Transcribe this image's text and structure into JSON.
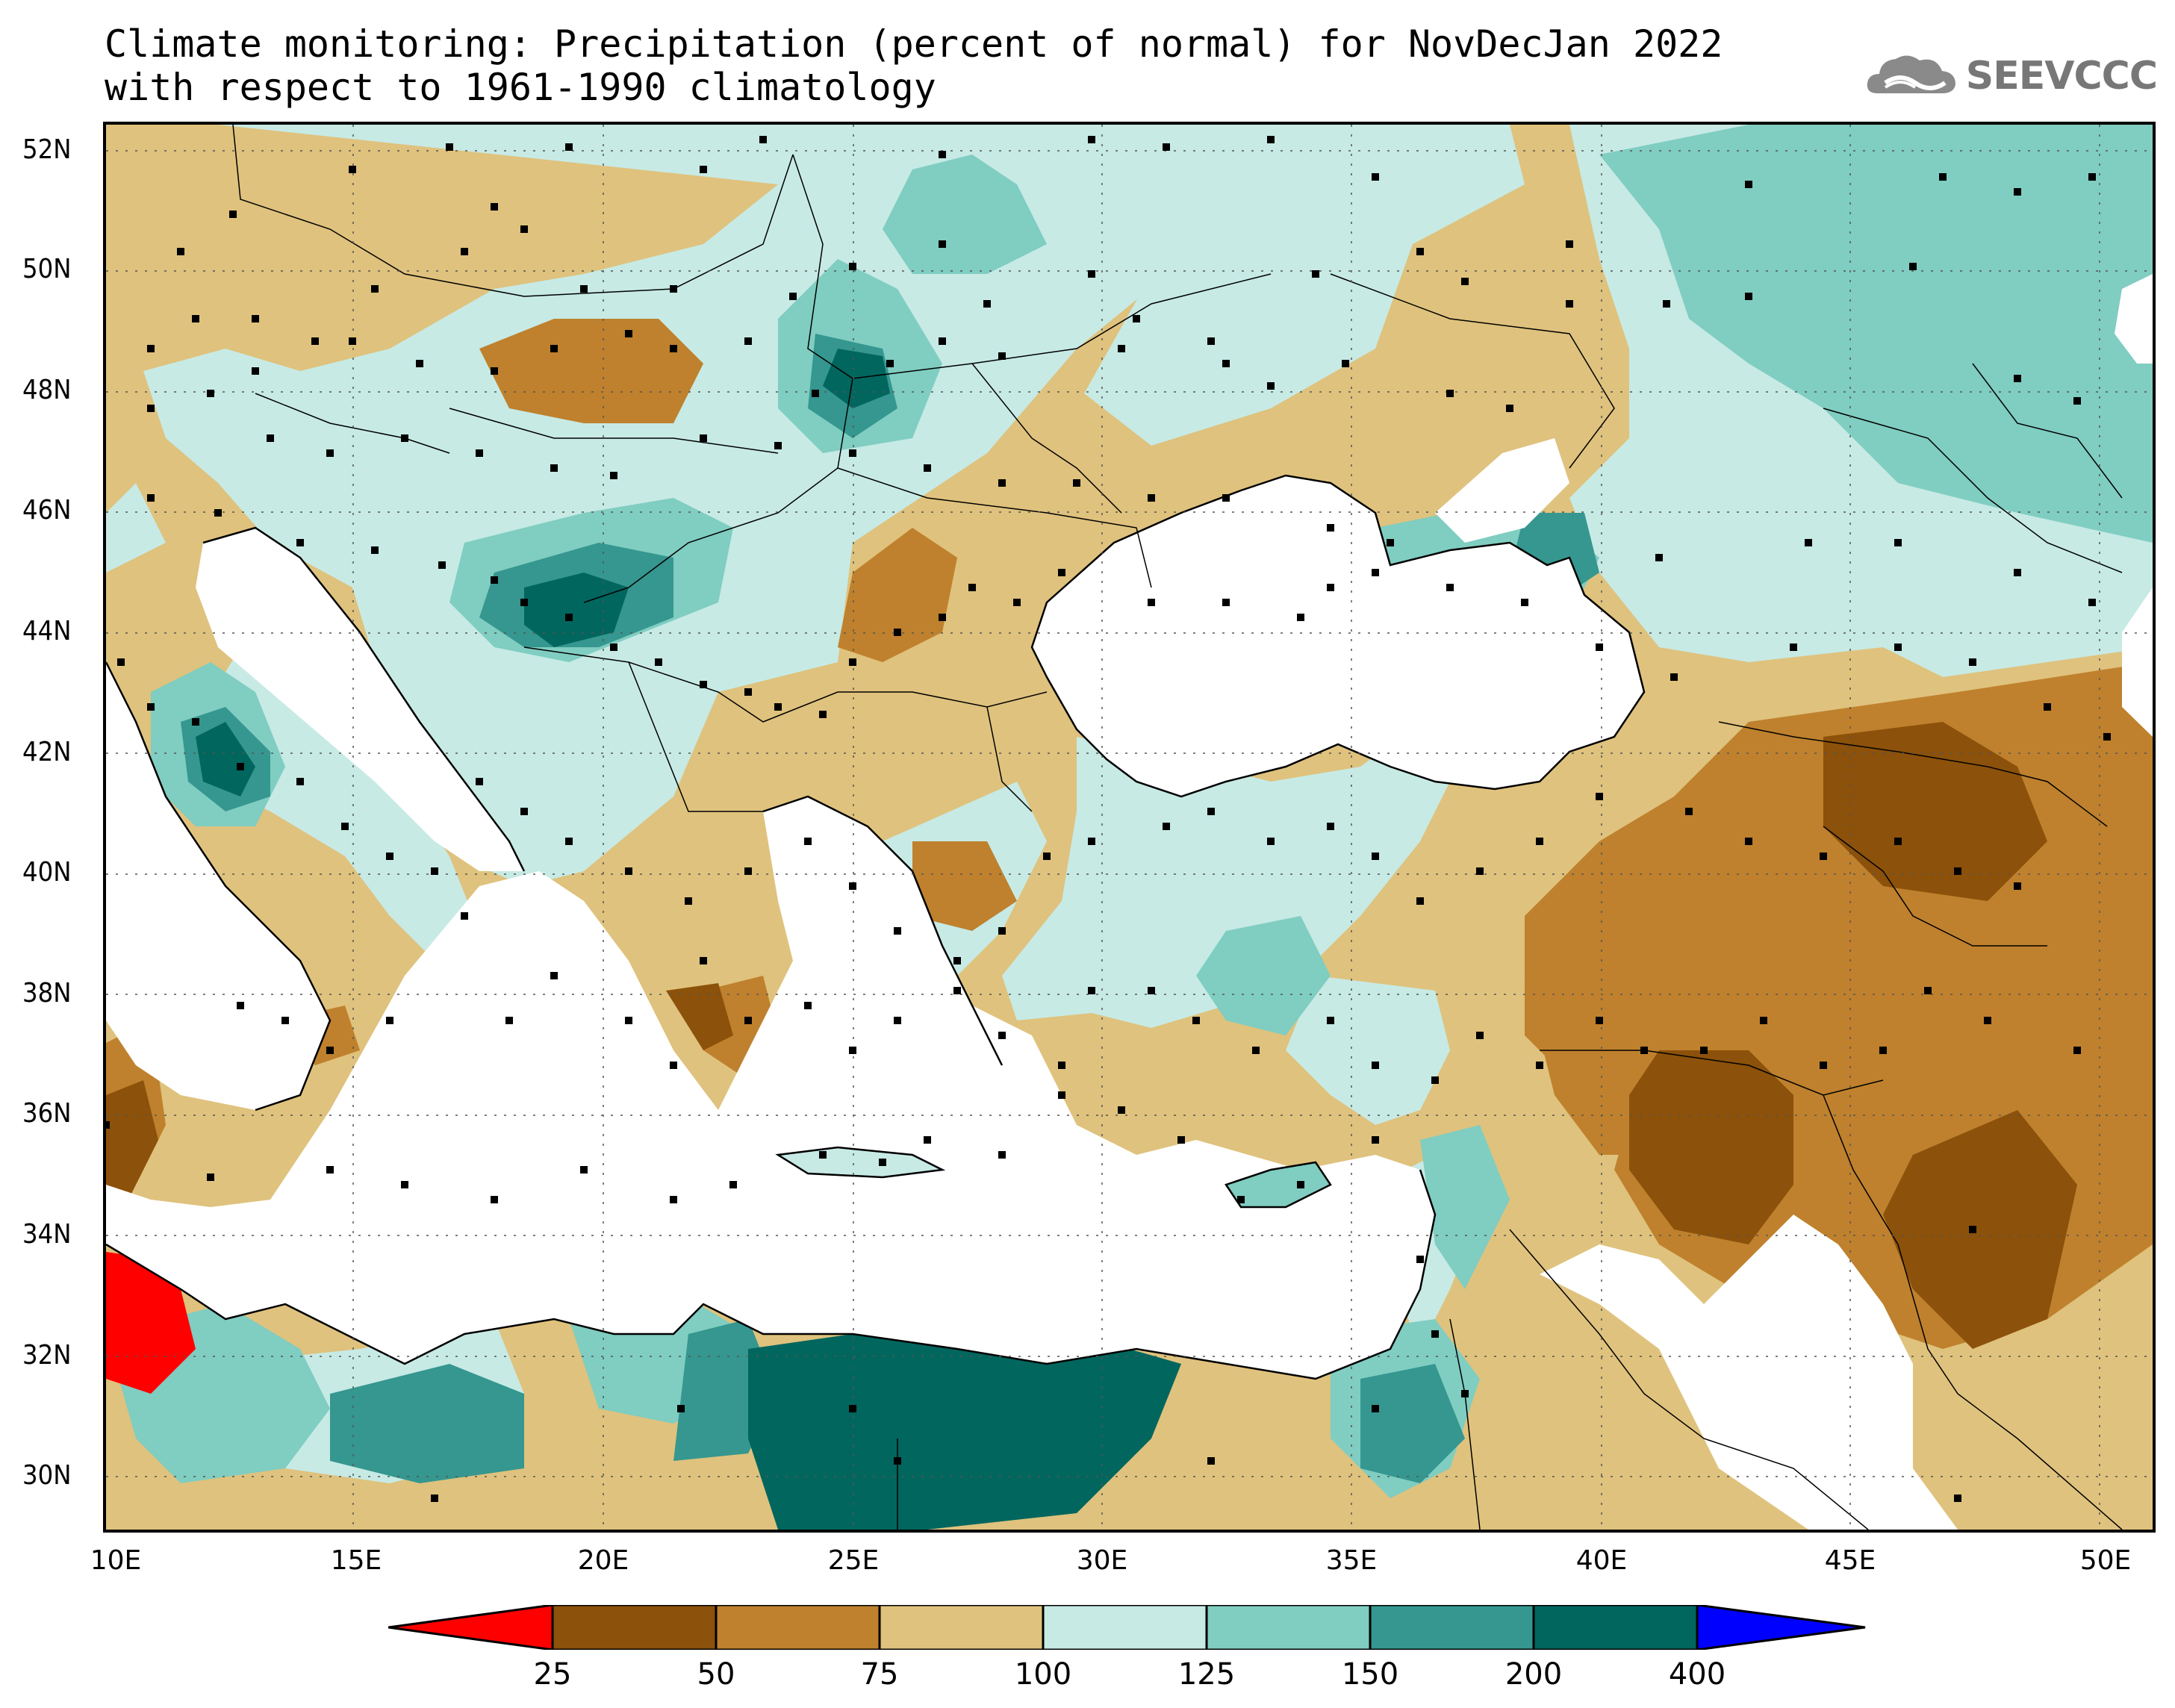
{
  "header": {
    "title_line1": "Climate monitoring: Precipitation (percent of normal) for NovDecJan 2022",
    "title_line2": "with respect to 1961-1990 climatology",
    "logo_text": "SEEVCCC"
  },
  "map": {
    "lat_labels": [
      "52N",
      "50N",
      "48N",
      "46N",
      "44N",
      "42N",
      "40N",
      "38N",
      "36N",
      "34N",
      "32N",
      "30N"
    ],
    "lon_labels": [
      "10E",
      "15E",
      "20E",
      "25E",
      "30E",
      "35E",
      "40E",
      "45E",
      "50E"
    ],
    "colors": {
      "lt25": "#ff0000",
      "b25_50": "#8c510a",
      "b50_75": "#bf812d",
      "b75_100": "#dfc27d",
      "b100_125": "#c7eae5",
      "b125_150": "#80cdc1",
      "b150_200": "#35978f",
      "b200_400": "#01665e",
      "gt400": "#0000ff",
      "sea": "#ffffff"
    }
  },
  "legend": {
    "labels": [
      "25",
      "50",
      "75",
      "100",
      "125",
      "150",
      "200",
      "400"
    ]
  }
}
